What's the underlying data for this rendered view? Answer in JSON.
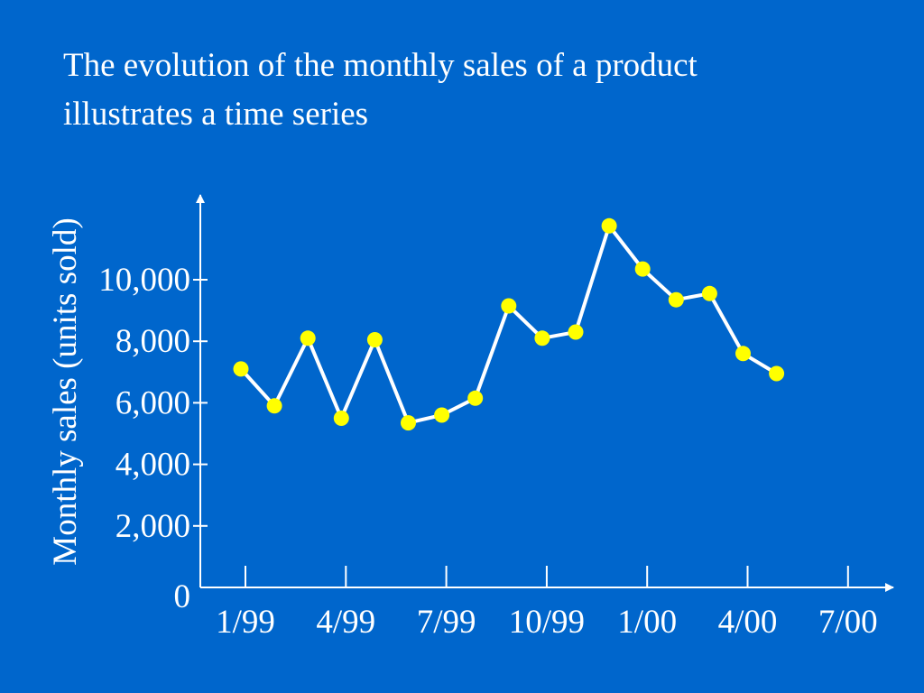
{
  "slide": {
    "title_lines": [
      "The evolution of the monthly sales of a product",
      "illustrates a time series"
    ]
  },
  "chart_data": {
    "type": "line",
    "title": "",
    "ylabel": "Monthly sales (units sold)",
    "xlabel": "",
    "ylim": [
      0,
      12500
    ],
    "yticks": [
      0,
      2000,
      4000,
      6000,
      8000,
      10000
    ],
    "ytick_labels": [
      "0",
      "2,000",
      "4,000",
      "6,000",
      "8,000",
      "10,000"
    ],
    "xticks": [
      "1/99",
      "4/99",
      "7/99",
      "10/99",
      "1/00",
      "4/00",
      "7/00"
    ],
    "x_month_range": [
      "1/99",
      "8/00"
    ],
    "series": [
      {
        "points": [
          {
            "x": "1/99",
            "y": 7100
          },
          {
            "x": "2/99",
            "y": 5900
          },
          {
            "x": "3/99",
            "y": 8100
          },
          {
            "x": "4/99",
            "y": 5500
          },
          {
            "x": "5/99",
            "y": 8050
          },
          {
            "x": "6/99",
            "y": 5350
          },
          {
            "x": "7/99",
            "y": 5600
          },
          {
            "x": "8/99",
            "y": 6150
          },
          {
            "x": "9/99",
            "y": 9150
          },
          {
            "x": "10/99",
            "y": 8100
          },
          {
            "x": "11/99",
            "y": 8300
          },
          {
            "x": "12/99",
            "y": 11750
          },
          {
            "x": "1/00",
            "y": 10350
          },
          {
            "x": "2/00",
            "y": 9350
          },
          {
            "x": "3/00",
            "y": 9550
          },
          {
            "x": "4/00",
            "y": 7600
          },
          {
            "x": "5/00",
            "y": 6950
          }
        ]
      }
    ],
    "colors": {
      "background": "#0066CC",
      "line": "#ffffff",
      "marker": "#FFFF00",
      "axis": "#ffffff"
    },
    "grid": false,
    "legend": "none"
  }
}
